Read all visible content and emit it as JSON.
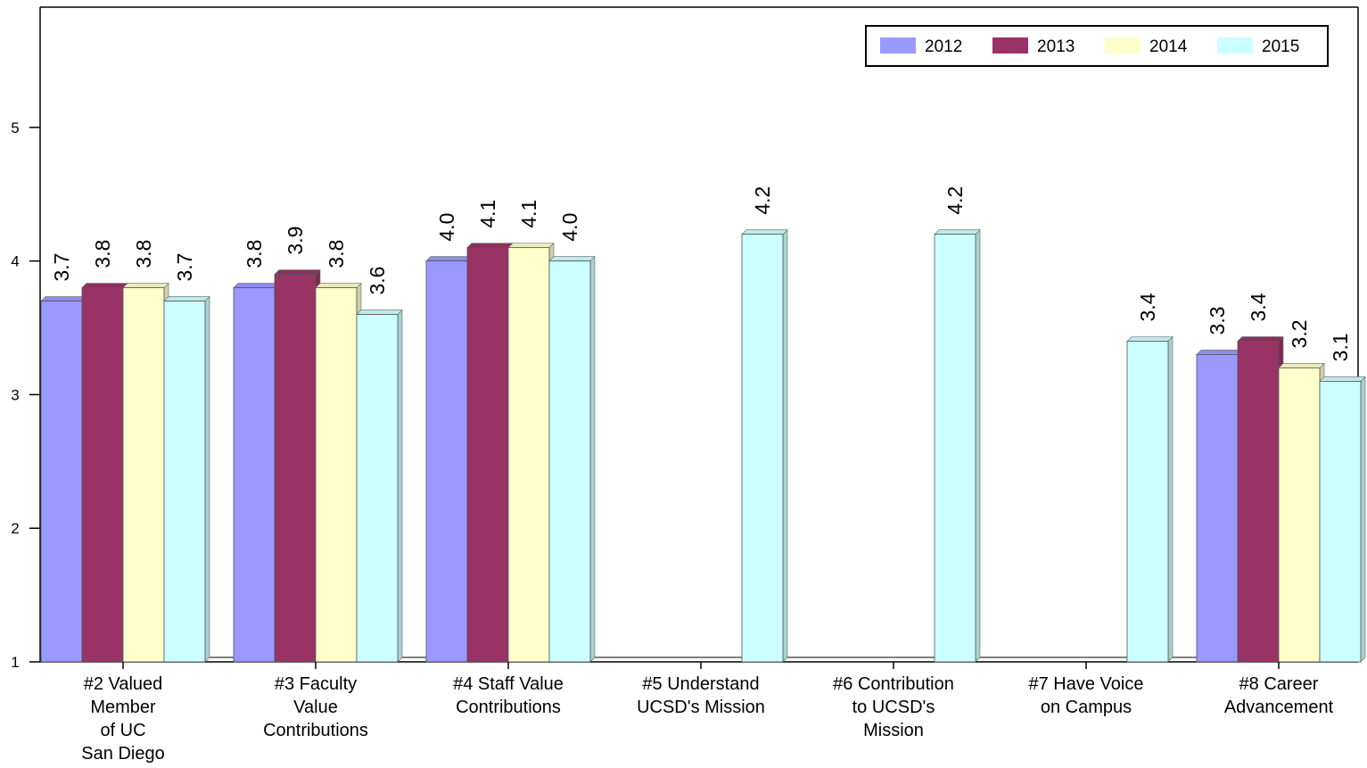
{
  "chart_data": {
    "type": "bar",
    "title": "",
    "xlabel": "",
    "ylabel": "",
    "ylim": [
      1,
      5.9
    ],
    "yticks": [
      1,
      2,
      3,
      4,
      5
    ],
    "grid": false,
    "legend_position": "top-right",
    "categories": [
      "#2 Valued\nMember\nof UC\nSan Diego",
      "#3 Faculty\nValue\nContributions",
      "#4 Staff Value\nContributions",
      "#5 Understand\nUCSD's Mission",
      "#6 Contribution\nto UCSD's\nMission",
      "#7 Have Voice\non Campus",
      "#8 Career\nAdvancement"
    ],
    "series": [
      {
        "name": "2012",
        "color": "#9999ff",
        "values": [
          3.7,
          3.8,
          4.0,
          null,
          null,
          null,
          3.3
        ]
      },
      {
        "name": "2013",
        "color": "#993366",
        "values": [
          3.8,
          3.9,
          4.1,
          null,
          null,
          null,
          3.4
        ]
      },
      {
        "name": "2014",
        "color": "#ffffcc",
        "values": [
          3.8,
          3.8,
          4.1,
          null,
          null,
          null,
          3.2
        ]
      },
      {
        "name": "2015",
        "color": "#ccffff",
        "values": [
          3.7,
          3.6,
          4.0,
          4.2,
          4.2,
          3.4,
          3.1
        ]
      }
    ],
    "value_labels": [
      [
        "3.7",
        "3.8",
        "3.8",
        "3.7"
      ],
      [
        "3.8",
        "3.9",
        "3.8",
        "3.6"
      ],
      [
        "4.0",
        "4.1",
        "4.1",
        "4.0"
      ],
      [
        null,
        null,
        null,
        "4.2"
      ],
      [
        null,
        null,
        null,
        "4.2"
      ],
      [
        null,
        null,
        null,
        "3.4"
      ],
      [
        "3.3",
        "3.4",
        "3.2",
        "3.1"
      ]
    ]
  }
}
